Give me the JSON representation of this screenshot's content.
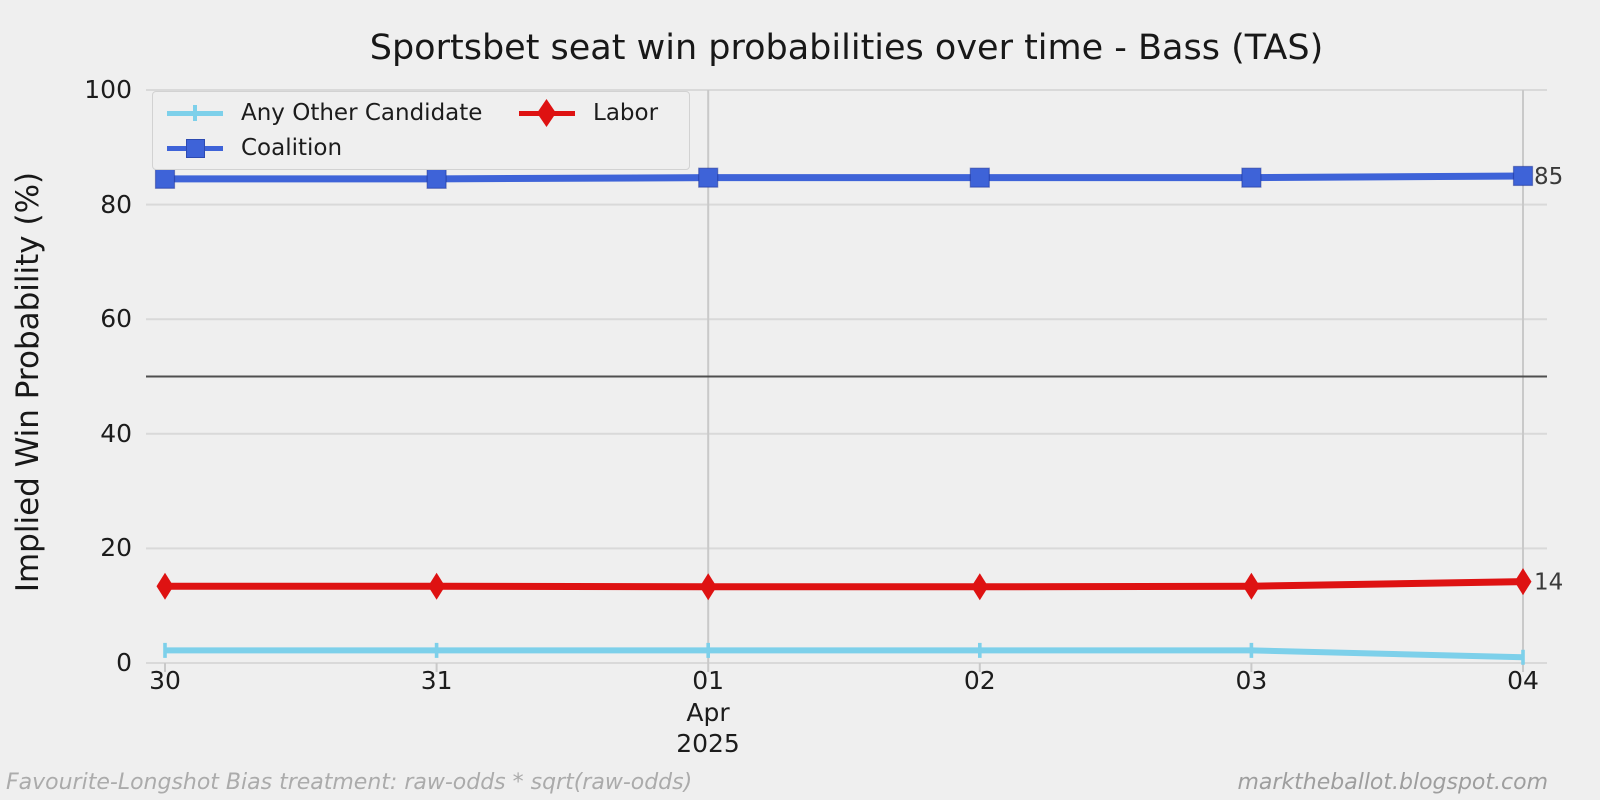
{
  "figure": {
    "background": "#efefef"
  },
  "footer": {
    "left": "Favourite-Longshot Bias treatment: raw-odds * sqrt(raw-odds)",
    "right": "marktheballot.blogspot.com"
  },
  "chart_data": {
    "type": "line",
    "title": "Sportsbet seat win probabilities over time - Bass (TAS)",
    "ylabel": "Implied Win Probability (%)",
    "xlabel": "",
    "x_axis_month": "Apr",
    "x_axis_year": "2025",
    "ylim": [
      0,
      100
    ],
    "yticks": [
      0,
      20,
      40,
      60,
      80,
      100
    ],
    "x_tick_labels": [
      "30",
      "31",
      "01",
      "02",
      "03",
      "04"
    ],
    "grid": true,
    "legend_position": "upper-left",
    "reference_line_y": 50,
    "vertical_gridlines_at": [
      "01",
      "04"
    ],
    "colors": {
      "grid_horizontal": "#d9d9d9",
      "grid_vertical": "#c9c9c9",
      "reference_line": "#4f4f4f",
      "end_label_text": "#3a3a3a"
    },
    "series": [
      {
        "name": "Any Other Candidate",
        "color": "#7DD0EA",
        "marker": "plus",
        "values": [
          2.2,
          2.2,
          2.2,
          2.2,
          2.2,
          1.0
        ]
      },
      {
        "name": "Coalition",
        "color": "#3E63D8",
        "marker": "square",
        "values": [
          84.5,
          84.5,
          84.7,
          84.7,
          84.7,
          85.0
        ],
        "end_label": "85"
      },
      {
        "name": "Labor",
        "color": "#DE1212",
        "marker": "diamond",
        "values": [
          13.4,
          13.4,
          13.3,
          13.3,
          13.4,
          14.2
        ],
        "end_label": "14"
      }
    ],
    "faded_extra_points": {
      "series": "Coalition",
      "opacity": 0.22,
      "points": [
        {
          "x": "30",
          "value": 85.8
        },
        {
          "x": "31",
          "value": 85.8
        }
      ]
    }
  }
}
